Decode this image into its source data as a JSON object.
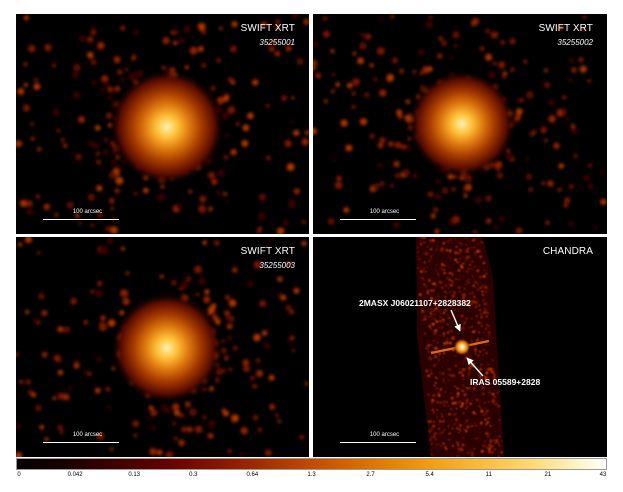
{
  "panels": [
    {
      "instrument": "SWIFT XRT",
      "obsid": "35255001",
      "scale": "100 arcsec"
    },
    {
      "instrument": "SWIFT XRT",
      "obsid": "35255002",
      "scale": "100 arcsec"
    },
    {
      "instrument": "SWIFT XRT",
      "obsid": "35255003",
      "scale": "100 arcsec"
    },
    {
      "instrument": "CHANDRA",
      "obsid": "",
      "scale": "100 arcsec"
    }
  ],
  "sources": {
    "source_a": "2MASX J06021107+2828382",
    "source_b": "IRAS 05589+2828"
  },
  "colorbar": {
    "ticks": [
      "0",
      "0.042",
      "0.13",
      "0.3",
      "0.64",
      "1.3",
      "2.7",
      "5.4",
      "11",
      "21",
      "43"
    ],
    "colors": [
      "#000000",
      "#620000",
      "#c85200",
      "#fbbc3c",
      "#ffffff"
    ]
  }
}
